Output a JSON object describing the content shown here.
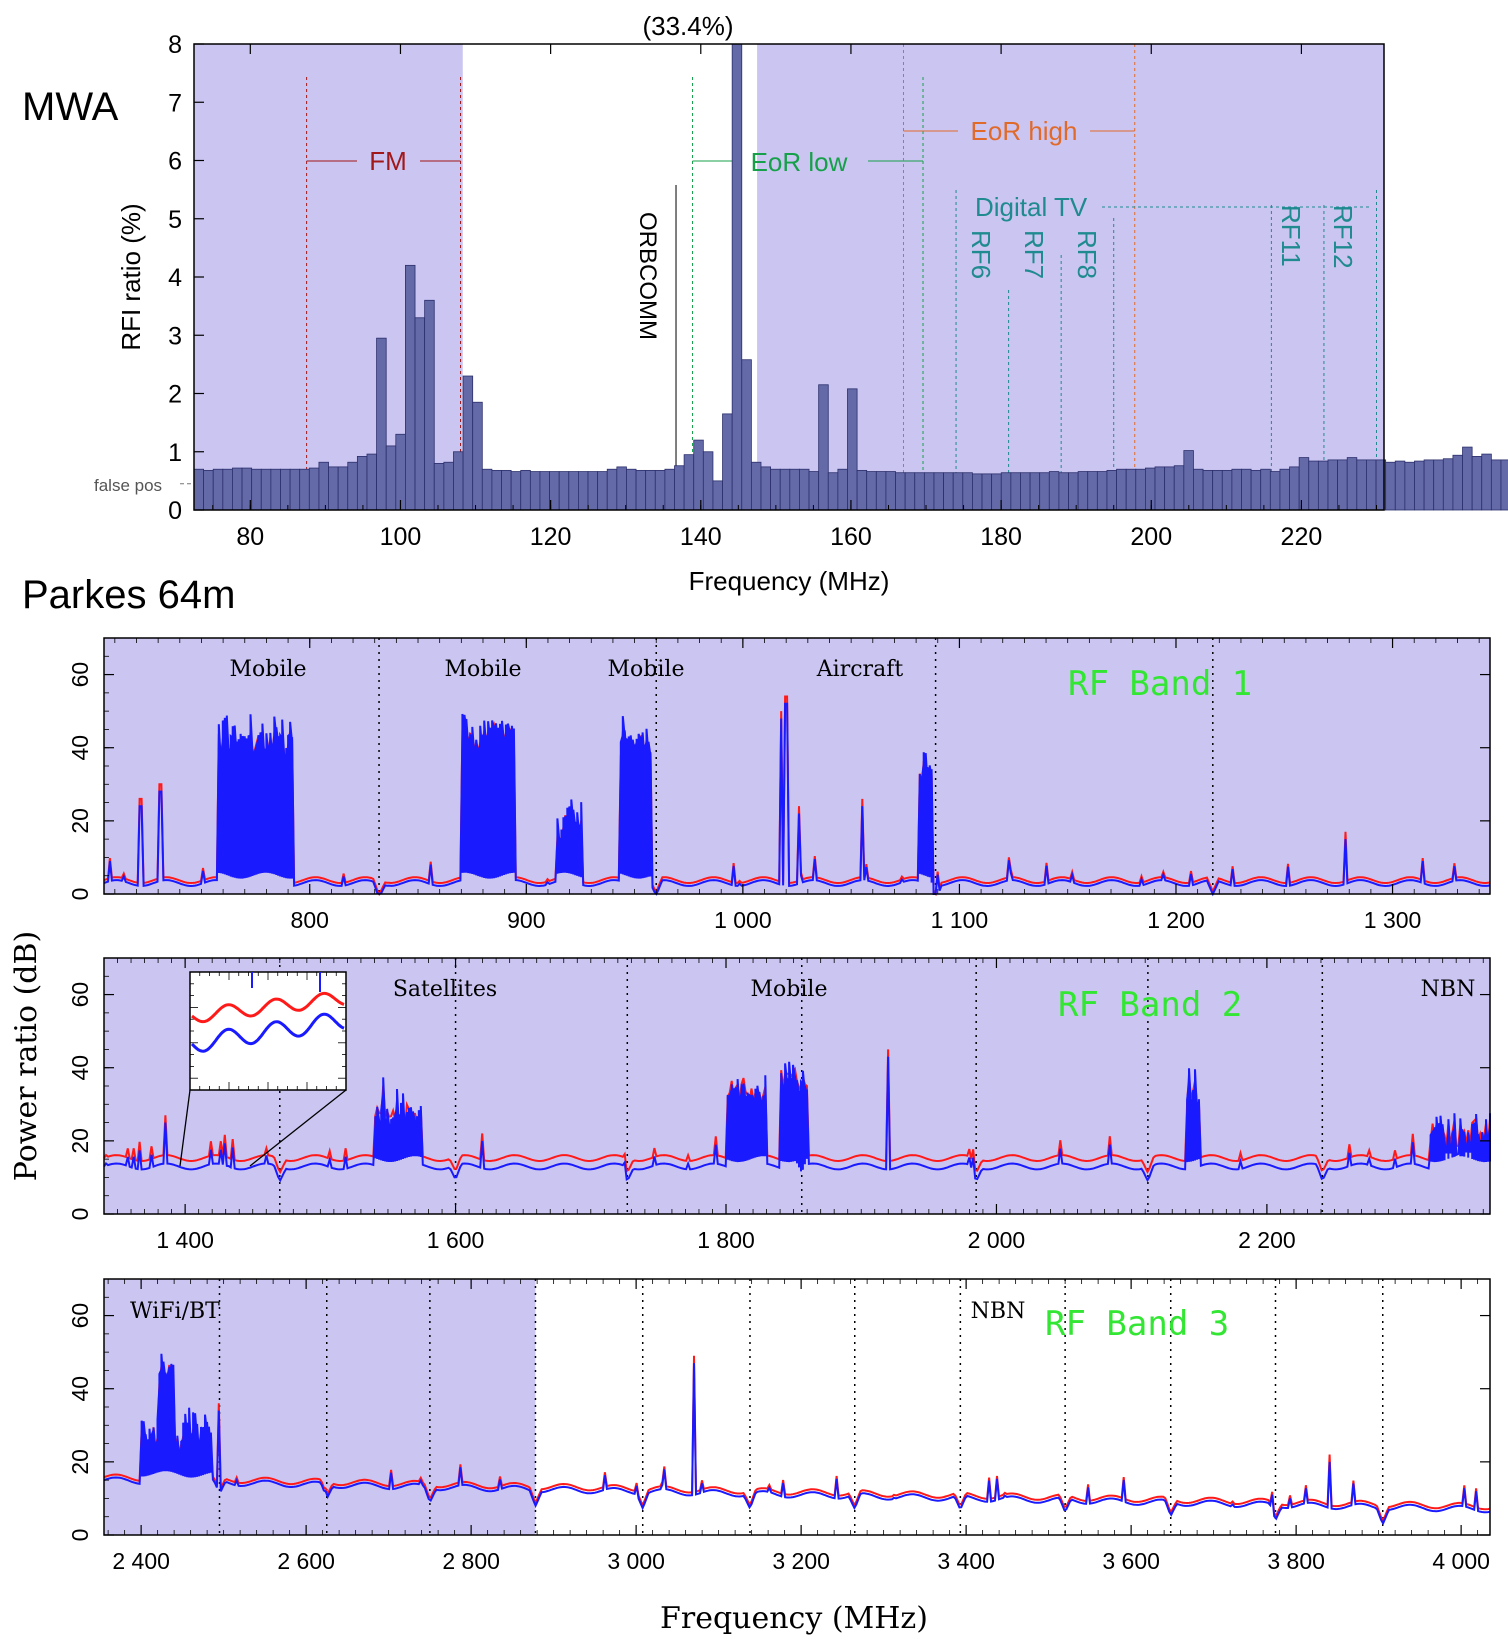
{
  "colors": {
    "shade": "#cbc5f2",
    "bar": "#646aa8",
    "bar_edge": "#2b2f6b",
    "fm": "#a01818",
    "eor_low": "#16a04a",
    "eor_high": "#e06a2a",
    "digital_tv": "#1f8a90",
    "series_red": "#ff1a1a",
    "series_blue": "#1a1aff",
    "band_label": "#33e633"
  },
  "mwa": {
    "panel_label": "MWA",
    "overflow_label": "(33.4%)",
    "false_pos_label": "false pos",
    "annotations": {
      "fm": "FM",
      "eor_low": "EoR low",
      "eor_high": "EoR high",
      "digital_tv": "Digital TV",
      "orbcomm": "ORBCOMM",
      "rf_channels": [
        "RF6",
        "RF7",
        "RF8",
        "RF11",
        "RF12"
      ]
    }
  },
  "parkes": {
    "panel_label": "Parkes 64m",
    "shared_ylabel": "Power ratio (dB)",
    "band1": {
      "band_label": "RF Band 1",
      "annotations": [
        "Mobile",
        "Mobile",
        "Mobile",
        "Aircraft"
      ]
    },
    "band2": {
      "band_label": "RF Band 2",
      "annotations": [
        "Satellites",
        "Mobile",
        "NBN"
      ]
    },
    "band3": {
      "band_label": "RF Band 3",
      "annotations": [
        "WiFi/BT",
        "NBN"
      ]
    }
  },
  "chart_data": [
    {
      "type": "bar",
      "title": "",
      "xlabel": "Frequency (MHz)",
      "ylabel": "RFI ratio (%)",
      "xlim": [
        72.5,
        231
      ],
      "ylim": [
        0,
        8
      ],
      "x_ticks": [
        80,
        100,
        120,
        140,
        160,
        180,
        200,
        220
      ],
      "y_ticks": [
        0,
        1,
        2,
        3,
        4,
        5,
        6,
        7,
        8
      ],
      "bin_width_mhz": 1.28,
      "bin_start_mhz": 72.5,
      "values": [
        0.7,
        0.68,
        0.7,
        0.7,
        0.72,
        0.72,
        0.7,
        0.7,
        0.7,
        0.7,
        0.7,
        0.7,
        0.72,
        0.82,
        0.74,
        0.74,
        0.82,
        0.92,
        0.96,
        2.95,
        1.1,
        1.3,
        4.2,
        3.3,
        3.6,
        0.8,
        0.82,
        1.0,
        2.3,
        1.85,
        0.7,
        0.68,
        0.68,
        0.66,
        0.68,
        0.66,
        0.66,
        0.66,
        0.66,
        0.66,
        0.66,
        0.66,
        0.66,
        0.7,
        0.74,
        0.7,
        0.68,
        0.68,
        0.68,
        0.7,
        0.76,
        0.95,
        1.2,
        1.0,
        0.5,
        1.65,
        33.4,
        2.58,
        0.82,
        0.74,
        0.7,
        0.7,
        0.7,
        0.7,
        0.66,
        2.15,
        0.64,
        0.7,
        2.08,
        0.68,
        0.66,
        0.66,
        0.66,
        0.64,
        0.64,
        0.64,
        0.64,
        0.64,
        0.64,
        0.64,
        0.64,
        0.62,
        0.62,
        0.62,
        0.64,
        0.64,
        0.64,
        0.64,
        0.64,
        0.66,
        0.64,
        0.64,
        0.66,
        0.66,
        0.66,
        0.68,
        0.7,
        0.7,
        0.7,
        0.72,
        0.74,
        0.74,
        0.76,
        1.02,
        0.7,
        0.68,
        0.68,
        0.68,
        0.7,
        0.7,
        0.68,
        0.7,
        0.66,
        0.7,
        0.74,
        0.9,
        0.84,
        0.84,
        0.86,
        0.86,
        0.9,
        0.86,
        0.86,
        0.86,
        0.82,
        0.84,
        0.82,
        0.84,
        0.86,
        0.86,
        0.88,
        0.94,
        1.08,
        0.92,
        0.96,
        0.86,
        0.86,
        0.82
      ],
      "false_positive_level": 0.45,
      "shaded_ranges": [
        [
          72.5,
          108.3
        ],
        [
          147.5,
          231
        ]
      ],
      "markers": {
        "fm": [
          87.5,
          108
        ],
        "eor_low": [
          138.9,
          169.6
        ],
        "eor_high": [
          167,
          197.8
        ],
        "orbcomm_mhz": 137.5,
        "digital_tv_channels": [
          {
            "name": "RF6",
            "range": [
              174,
              181
            ]
          },
          {
            "name": "RF7",
            "range": [
              181,
              188
            ]
          },
          {
            "name": "RF8",
            "range": [
              188,
              195
            ]
          },
          {
            "name": "RF11",
            "range": [
              216,
              223
            ]
          },
          {
            "name": "RF12",
            "range": [
              223,
              230
            ]
          }
        ]
      },
      "grid": false
    },
    {
      "type": "line",
      "title": "RF Band 1",
      "xlabel": "",
      "ylabel": "Power ratio (dB)",
      "xlim": [
        705,
        1345
      ],
      "ylim": [
        0,
        70
      ],
      "x_ticks": [
        800,
        900,
        1000,
        1100,
        1200,
        1300
      ],
      "x_tick_labels": [
        "800",
        "900",
        "1 000",
        "1 100",
        "1 200",
        "1 300"
      ],
      "y_ticks": [
        0,
        20,
        40,
        60
      ],
      "series": [
        {
          "color": "red"
        },
        {
          "color": "blue"
        }
      ],
      "baseline_db": 3,
      "features": [
        {
          "x": [
            758,
            792
          ],
          "level_db": 40,
          "label": "Mobile"
        },
        {
          "x": [
            870,
            895
          ],
          "level_db": 42,
          "label": "Mobile"
        },
        {
          "x": [
            943,
            958
          ],
          "level_db": 40,
          "label": "Mobile"
        },
        {
          "x": [
            1081,
            1088
          ],
          "level_db": 32,
          "label": "Aircraft"
        },
        {
          "x": [
            914,
            926
          ],
          "level_db": 18
        }
      ],
      "spikes": [
        [
          722,
          24
        ],
        [
          731,
          28
        ],
        [
          1018,
          48
        ],
        [
          1020,
          52
        ],
        [
          1026,
          22
        ],
        [
          1055,
          24
        ],
        [
          1278,
          15
        ]
      ],
      "dividers_mhz": [
        832,
        960,
        1089,
        1217
      ],
      "shaded": true,
      "grid": false
    },
    {
      "type": "line",
      "title": "RF Band 2",
      "xlabel": "",
      "ylabel": "Power ratio (dB)",
      "xlim": [
        1340,
        2365
      ],
      "ylim": [
        0,
        70
      ],
      "x_ticks": [
        1400,
        1600,
        1800,
        2000,
        2200
      ],
      "x_tick_labels": [
        "1 400",
        "1 600",
        "1 800",
        "2 000",
        "2 200"
      ],
      "y_ticks": [
        0,
        20,
        40,
        60
      ],
      "series": [
        {
          "color": "red"
        },
        {
          "color": "blue"
        }
      ],
      "baseline_db": 13,
      "features": [
        {
          "x": [
            1540,
            1575
          ],
          "level_db": 25,
          "label": "Satellites"
        },
        {
          "x": [
            1800,
            1830
          ],
          "level_db": 32
        },
        {
          "x": [
            1840,
            1860
          ],
          "level_db": 35,
          "label": "Mobile"
        },
        {
          "x": [
            2140,
            2150
          ],
          "level_db": 30
        },
        {
          "x": [
            2320,
            2365
          ],
          "level_db": 20,
          "label": "NBN"
        }
      ],
      "spikes": [
        [
          1385,
          25
        ],
        [
          1920,
          43
        ],
        [
          1460,
          16
        ],
        [
          1620,
          20
        ]
      ],
      "dividers_mhz": [
        1470,
        1600,
        1727,
        1856,
        1985,
        2112,
        2241
      ],
      "inset_zoom_mhz": [
        1400,
        1450
      ],
      "shaded": true,
      "grid": false
    },
    {
      "type": "line",
      "title": "RF Band 3",
      "xlabel": "Frequency (MHz)",
      "ylabel": "Power ratio (dB)",
      "xlim": [
        2355,
        4035
      ],
      "ylim": [
        0,
        70
      ],
      "x_ticks": [
        2400,
        2600,
        2800,
        3000,
        3200,
        3400,
        3600,
        3800,
        4000
      ],
      "x_tick_labels": [
        "2 400",
        "2 600",
        "2 800",
        "3 000",
        "3 200",
        "3 400",
        "3 600",
        "3 800",
        "4 000"
      ],
      "y_ticks": [
        0,
        20,
        40,
        60
      ],
      "series": [
        {
          "color": "red"
        },
        {
          "color": "blue"
        }
      ],
      "baseline_db": 15,
      "features": [
        {
          "x": [
            2400,
            2485
          ],
          "level_db": 25,
          "label": "WiFi/BT"
        },
        {
          "x": [
            2420,
            2440
          ],
          "level_db": 42
        }
      ],
      "spikes": [
        [
          3070,
          47
        ],
        [
          3840,
          20
        ],
        [
          2495,
          34
        ]
      ],
      "dividers_mhz": [
        2495,
        2625,
        2750,
        2878,
        3008,
        3138,
        3265,
        3393,
        3520,
        3648,
        3775,
        3905
      ],
      "shaded_range_mhz": [
        2355,
        2878
      ],
      "grid": false
    }
  ]
}
